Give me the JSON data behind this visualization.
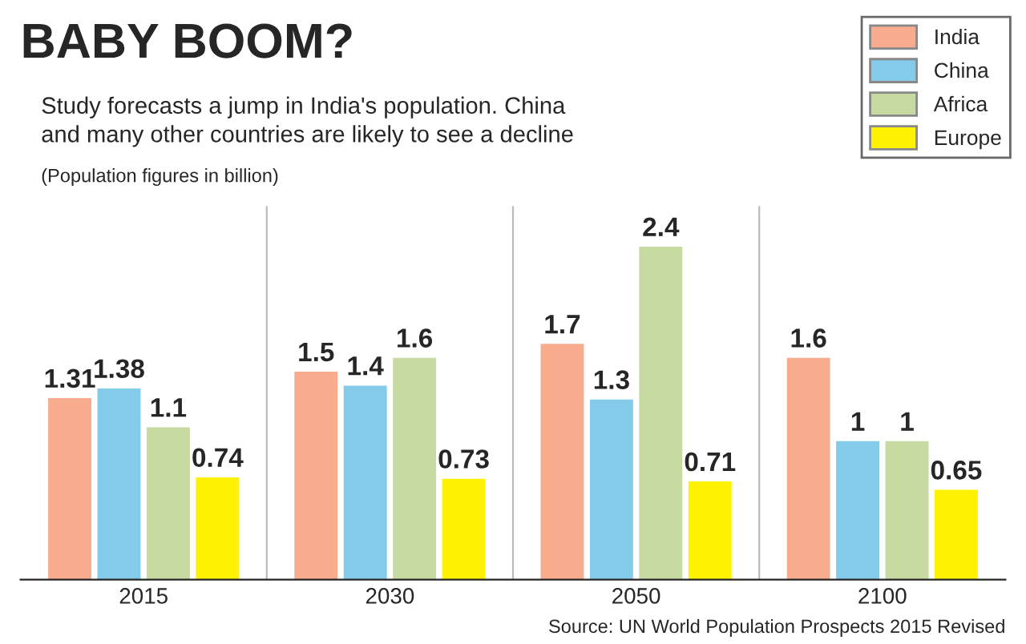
{
  "chart_data": {
    "type": "bar",
    "title": "BABY BOOM?",
    "subtitle": "Study forecasts a jump in India's population. China\nand many other countries are likely to see a decline",
    "annotations": [
      "(Population figures in billion)",
      "Source: UN World Population Prospects 2015 Revised"
    ],
    "categories": [
      "2015",
      "2030",
      "2050",
      "2100"
    ],
    "series": [
      {
        "name": "India",
        "color": "#f9ab8e",
        "values": [
          1.31,
          1.5,
          1.7,
          1.6
        ]
      },
      {
        "name": "China",
        "color": "#83cbe9",
        "values": [
          1.38,
          1.4,
          1.3,
          1
        ]
      },
      {
        "name": "Africa",
        "color": "#c6daa2",
        "values": [
          1.1,
          1.6,
          2.4,
          1
        ]
      },
      {
        "name": "Europe",
        "color": "#fff200",
        "values": [
          0.74,
          0.73,
          0.71,
          0.65
        ]
      }
    ],
    "relative": false,
    "data_labels": true,
    "legend": "top right",
    "grid": false
  }
}
